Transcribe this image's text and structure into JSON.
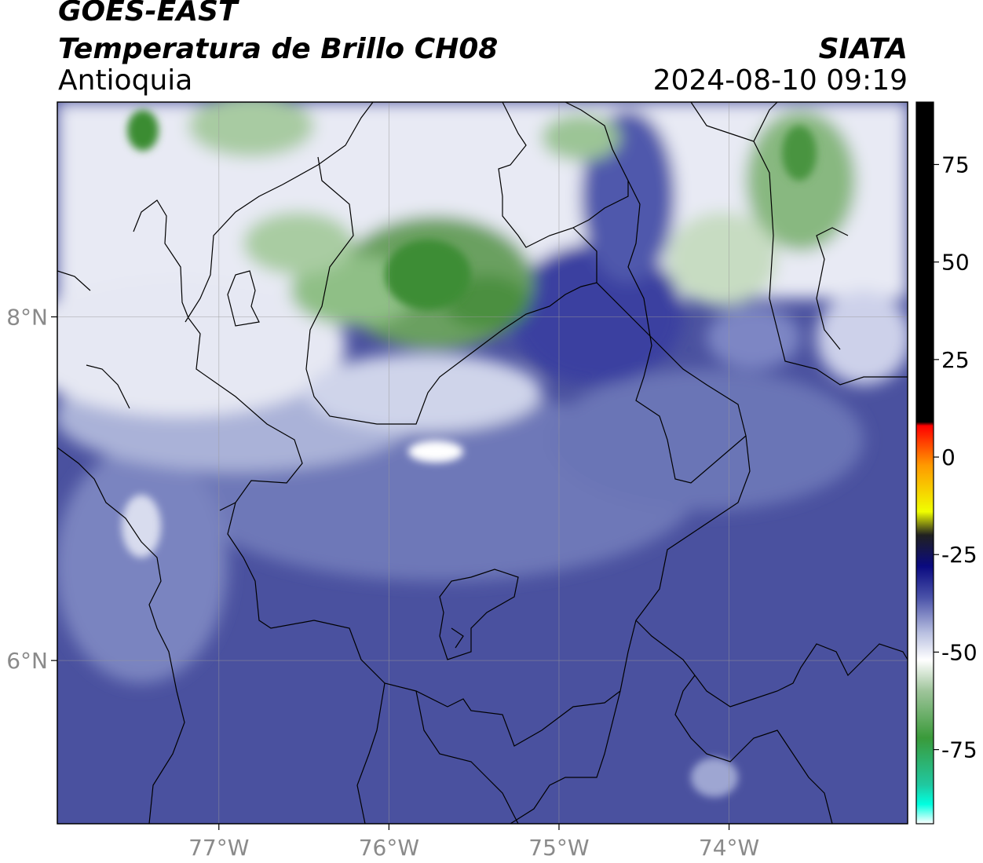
{
  "header": {
    "satellite": "GOES-EAST",
    "product": "Temperatura de Brillo CH08",
    "region": "Antioquia",
    "organization": "SIATA",
    "datetime": "2024-08-10 09:19"
  },
  "map": {
    "lon_range": [
      -77.95,
      -72.95
    ],
    "lat_range": [
      5.05,
      9.25
    ],
    "x_ticks": [
      {
        "value": -77,
        "label": "77°W"
      },
      {
        "value": -76,
        "label": "76°W"
      },
      {
        "value": -75,
        "label": "75°W"
      },
      {
        "value": -74,
        "label": "74°W"
      }
    ],
    "y_ticks": [
      {
        "value": 8,
        "label": "8°N"
      },
      {
        "value": 6,
        "label": "6°N"
      }
    ],
    "grid": true
  },
  "colorbar": {
    "range": [
      -94,
      91
    ],
    "ticks": [
      {
        "value": 75,
        "label": "75"
      },
      {
        "value": 50,
        "label": "50"
      },
      {
        "value": 25,
        "label": "25"
      },
      {
        "value": 0,
        "label": "0"
      },
      {
        "value": -25,
        "label": "-25"
      },
      {
        "value": -50,
        "label": "-50"
      },
      {
        "value": -75,
        "label": "-75"
      }
    ],
    "stops": [
      {
        "value": -94,
        "color": "#ffffff"
      },
      {
        "value": -89,
        "color": "#00ffe0"
      },
      {
        "value": -84,
        "color": "#20c8a0"
      },
      {
        "value": -72,
        "color": "#3a9a3a"
      },
      {
        "value": -60,
        "color": "#9ec49a"
      },
      {
        "value": -52,
        "color": "#ffffff"
      },
      {
        "value": -45,
        "color": "#b8bfe0"
      },
      {
        "value": -36,
        "color": "#4a52a8"
      },
      {
        "value": -28,
        "color": "#0a0a80"
      },
      {
        "value": -20,
        "color": "#202020"
      },
      {
        "value": -14,
        "color": "#f0ff00"
      },
      {
        "value": -2,
        "color": "#ff9800"
      },
      {
        "value": 8,
        "color": "#ff0000"
      },
      {
        "value": 9,
        "color": "#000000"
      },
      {
        "value": 91,
        "color": "#000000"
      }
    ]
  }
}
